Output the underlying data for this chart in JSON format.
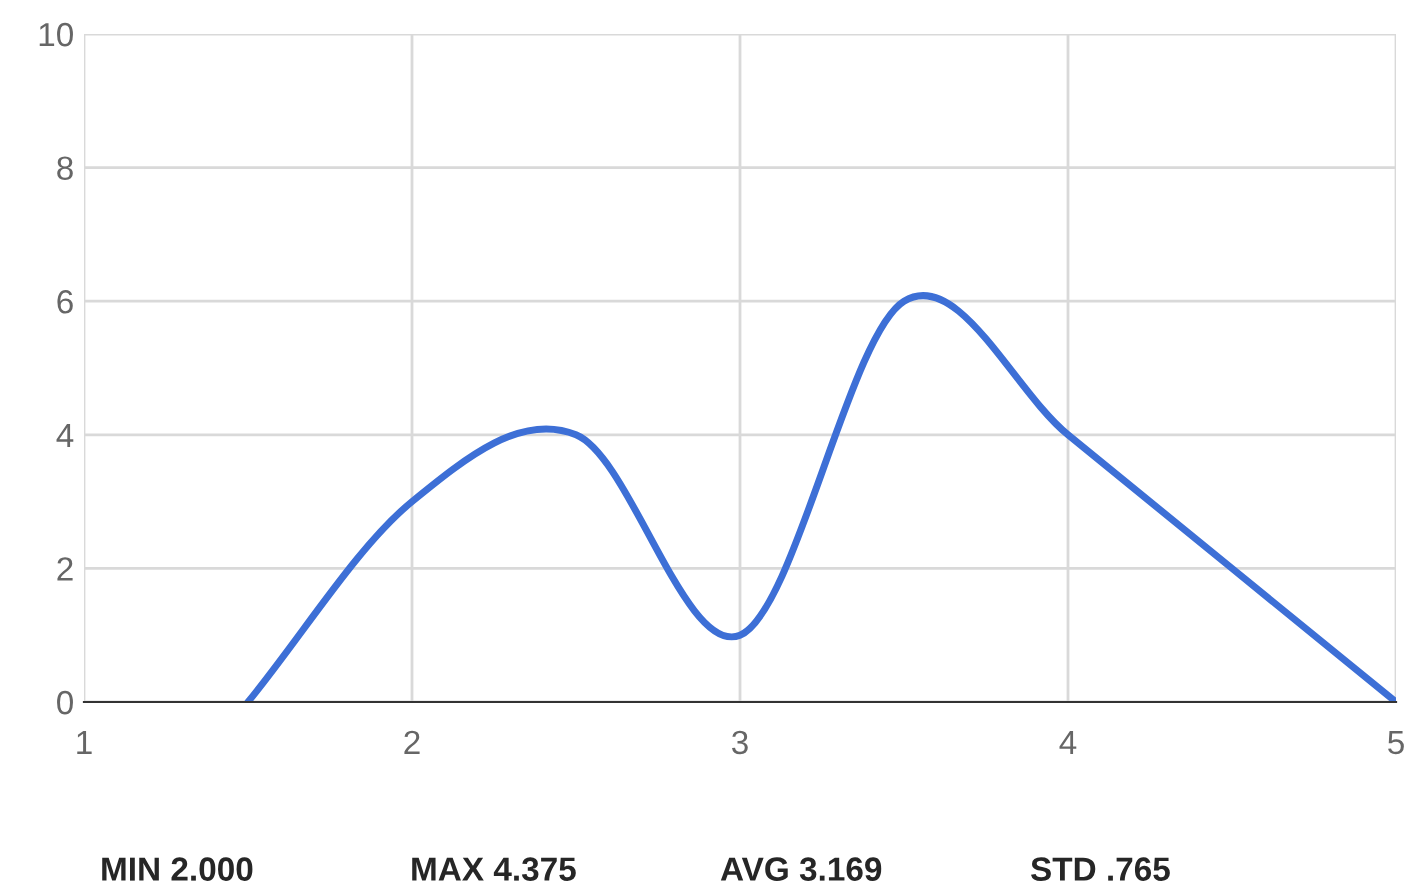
{
  "chart_data": {
    "type": "line",
    "x": [
      1.5,
      2,
      2.5,
      3,
      3.5,
      4,
      4.5,
      5
    ],
    "series": [
      {
        "color": "#3d6fd6",
        "values": [
          0,
          3,
          4,
          1,
          6,
          4,
          2,
          0
        ]
      }
    ],
    "xlim": [
      1,
      5
    ],
    "xticks": [
      1,
      2,
      3,
      4,
      5
    ],
    "ylim": [
      0,
      10
    ],
    "yticks": [
      0,
      2,
      4,
      6,
      8,
      10
    ],
    "grid": true,
    "marker": "none",
    "line_style": "solid",
    "annotations": [
      "MIN 2.000",
      "MAX 4.375",
      "AVG 3.169",
      "STD .765"
    ]
  }
}
